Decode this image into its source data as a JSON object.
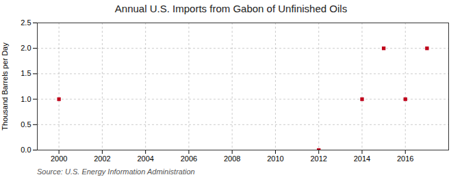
{
  "chart_data": {
    "type": "scatter",
    "title": "Annual U.S. Imports from Gabon of Unfinished Oils",
    "ylabel": "Thousand Barrels per Day",
    "source": "Source: U.S. Energy Information Administration",
    "x": [
      2000,
      2012,
      2014,
      2015,
      2016,
      2017
    ],
    "values": [
      1.0,
      0.0,
      1.0,
      2.0,
      1.0,
      2.0
    ],
    "color": "#c0001a",
    "marker": "square",
    "xlim": [
      1999,
      2018
    ],
    "ylim": [
      0.0,
      2.5
    ],
    "xticks": [
      2000,
      2002,
      2004,
      2006,
      2008,
      2010,
      2012,
      2014,
      2016
    ],
    "yticks": [
      {
        "value": 0.0,
        "label": "0.0"
      },
      0.5,
      {
        "value": 1.0,
        "label": "1.0"
      },
      1.5,
      {
        "value": 2.0,
        "label": "2.0"
      },
      2.5
    ],
    "grid": true
  }
}
